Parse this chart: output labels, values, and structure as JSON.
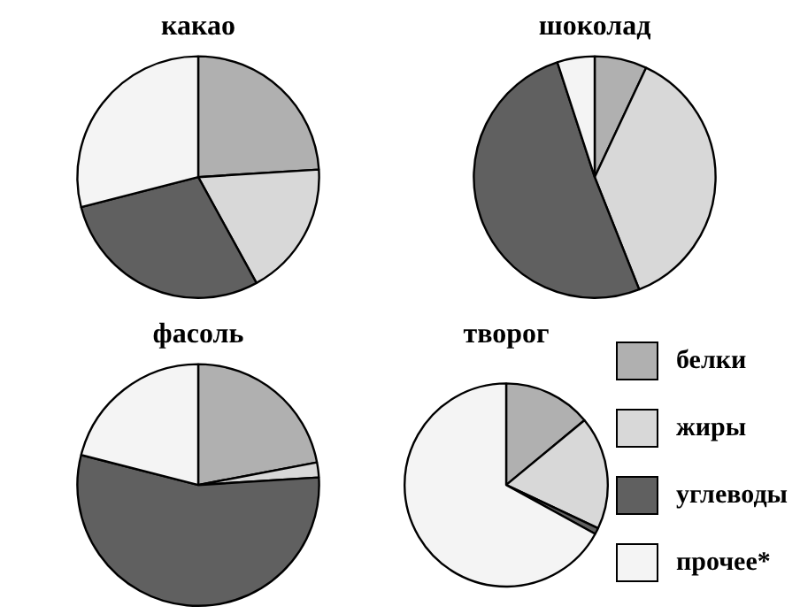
{
  "chart_data": [
    {
      "type": "pie",
      "title": "какао",
      "categories": [
        "белки",
        "жиры",
        "углеводы",
        "прочее*"
      ],
      "values": [
        24,
        18,
        29,
        29
      ],
      "colors": [
        "#b0b0b0",
        "#d8d8d8",
        "#606060",
        "#f4f4f4"
      ],
      "legend": "bottom right"
    },
    {
      "type": "pie",
      "title": "шоколад",
      "categories": [
        null,
        null,
        null,
        null
      ],
      "values": [
        7,
        37,
        51,
        5
      ],
      "colors": [
        "#b0b0b0",
        "#d8d8d8",
        "#606060",
        "#f4f4f4"
      ]
    },
    {
      "type": "pie",
      "title": "фасоль",
      "categories": [
        null,
        null,
        null,
        null
      ],
      "values": [
        22,
        2,
        55,
        21
      ],
      "colors": [
        "#b0b0b0",
        "#d8d8d8",
        "#606060",
        "#f4f4f4"
      ]
    },
    {
      "type": "pie",
      "title": "творог",
      "categories": [
        null,
        null,
        null,
        null
      ],
      "values": [
        14,
        18,
        1,
        67
      ],
      "colors": [
        "#b0b0b0",
        "#d8d8d8",
        "#606060",
        "#f4f4f4"
      ]
    }
  ]
}
